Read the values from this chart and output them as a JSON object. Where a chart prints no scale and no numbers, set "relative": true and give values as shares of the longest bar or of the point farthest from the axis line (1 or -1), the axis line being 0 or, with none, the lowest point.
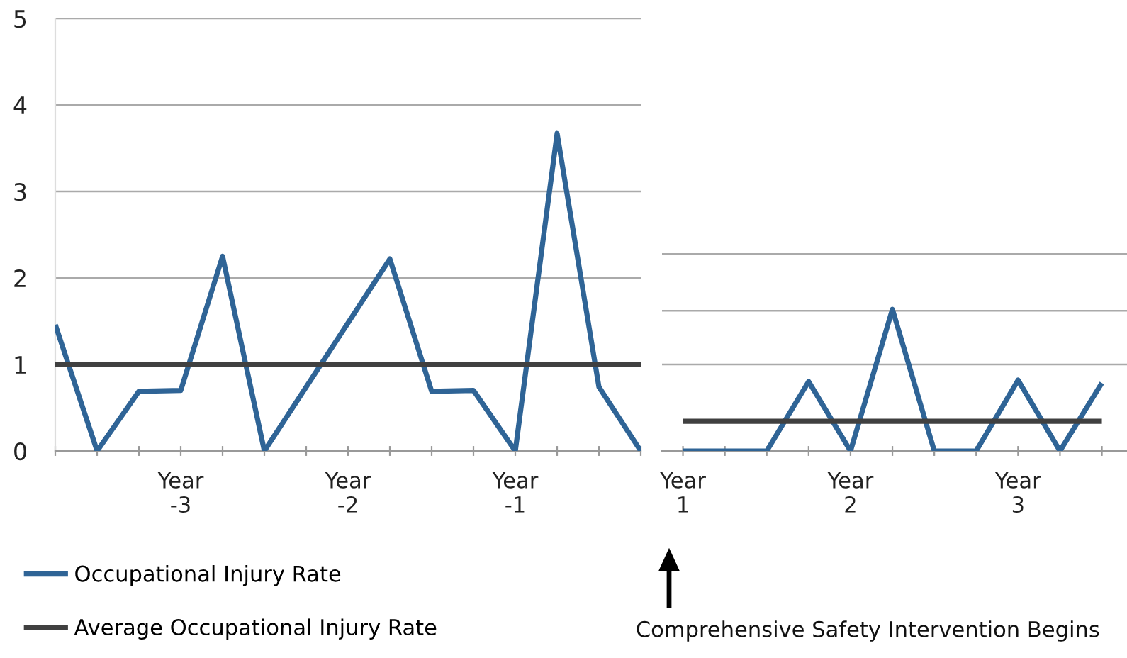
{
  "chart_data": [
    {
      "type": "line",
      "categories": [
        null,
        null,
        null,
        "Year\n-3",
        null,
        null,
        null,
        "Year\n-2",
        null,
        null,
        null,
        "Year\n-1",
        null,
        null,
        null
      ],
      "series": [
        {
          "name": "Occupational Injury Rate",
          "color": "#2f6496",
          "values": [
            1.46,
            0,
            0.69,
            0.7,
            2.25,
            0,
            0.74,
            1.48,
            2.22,
            0.69,
            0.7,
            0,
            3.67,
            0.74,
            0
          ]
        },
        {
          "name": "Average Occupational Injury Rate",
          "color": "#404040",
          "values": [
            1,
            1,
            1,
            1,
            1,
            1,
            1,
            1,
            1,
            1,
            1,
            1,
            1,
            1,
            1
          ]
        }
      ],
      "ylim": [
        0,
        5
      ],
      "yticks": [
        0,
        1,
        2,
        3,
        4,
        5
      ],
      "grid": "y",
      "legend": "bottom left"
    },
    {
      "type": "line",
      "categories": [
        "Year\n1",
        null,
        null,
        null,
        "Year\n2",
        null,
        null,
        null,
        "Year\n3",
        null,
        null
      ],
      "relative": true,
      "series": [
        {
          "color": "#2f6496",
          "values": [
            0,
            0,
            0,
            0.49,
            0,
            1,
            0,
            0,
            0.5,
            0,
            0.48
          ]
        },
        {
          "color": "#404040",
          "values": [
            0.21,
            0.21,
            0.21,
            0.21,
            0.21,
            0.21,
            0.21,
            0.21,
            0.21,
            0.21,
            0.21
          ]
        }
      ],
      "ref_lines": [
        {
          "axis": "y",
          "value": 0.61,
          "color": "#aaaaaa"
        },
        {
          "axis": "y",
          "value": 0.99,
          "color": "#aaaaaa"
        },
        {
          "axis": "y",
          "value": 1.39,
          "color": "#aaaaaa"
        }
      ],
      "annotations": [
        "Comprehensive Safety Intervention Begins"
      ]
    }
  ]
}
